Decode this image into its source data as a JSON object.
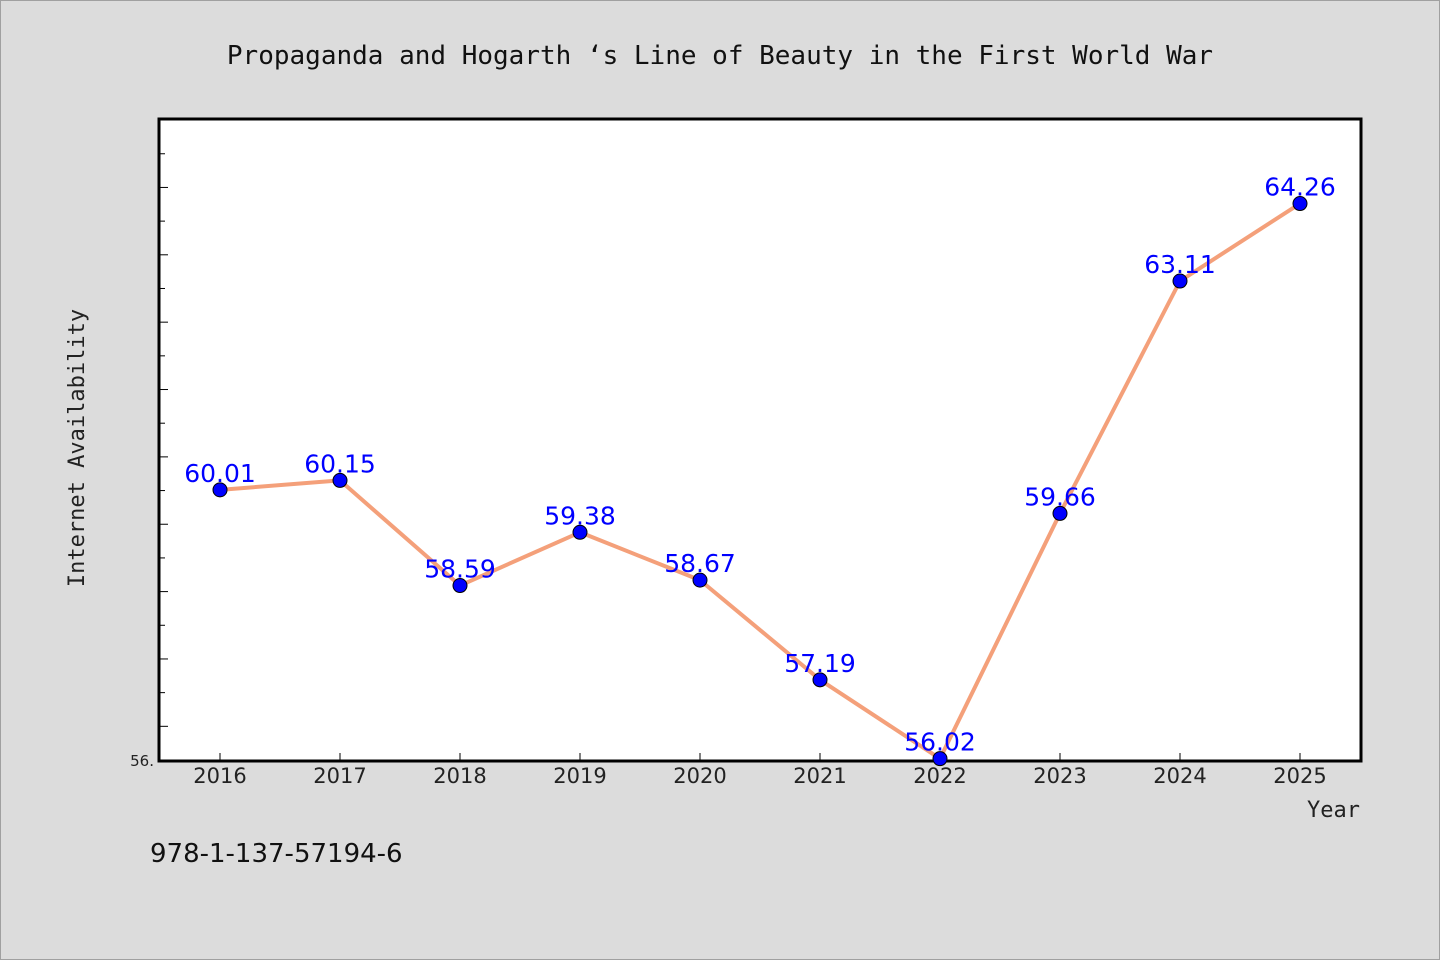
{
  "isbn": "978-1-137-57194-6",
  "y_axis_min_label": "56.",
  "chart_data": {
    "type": "line",
    "title": "Propaganda and Hogarth ‘s Line of Beauty in the First World War",
    "xlabel": "Year",
    "ylabel": "Internet Availability",
    "categories": [
      "2016",
      "2017",
      "2018",
      "2019",
      "2020",
      "2021",
      "2022",
      "2023",
      "2024",
      "2025"
    ],
    "series": [
      {
        "values": [
          60.01,
          60.15,
          58.59,
          59.38,
          58.67,
          57.19,
          56.02,
          59.66,
          63.11,
          64.26
        ],
        "data_labels": [
          "60.01",
          "60.15",
          "58.59",
          "59.38",
          "58.67",
          "57.19",
          "56.02",
          "59.66",
          "63.11",
          "64.26"
        ]
      }
    ],
    "ylim": [
      56.0,
      65.5
    ],
    "line_color": "#f4a07a",
    "marker_color": "#0000ff",
    "label_color": "#0000ff",
    "grid": false,
    "legend": "none"
  }
}
